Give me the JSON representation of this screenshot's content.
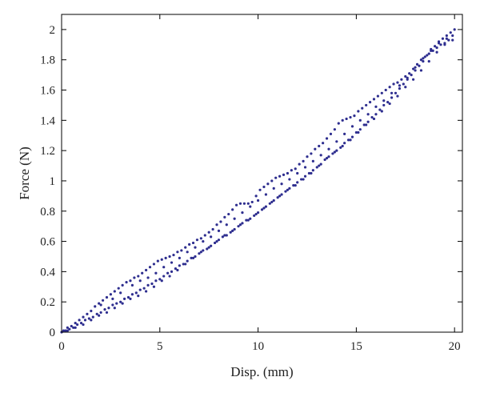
{
  "chart_data": {
    "type": "scatter",
    "xlabel": "Disp. (mm)",
    "ylabel": "Force (N)",
    "xlim": [
      0,
      20.4
    ],
    "ylim": [
      0,
      2.1
    ],
    "xticks": [
      0,
      5,
      10,
      15,
      20
    ],
    "yticks": [
      0,
      0.2,
      0.4,
      0.6,
      0.8,
      1,
      1.2,
      1.4,
      1.6,
      1.8,
      2
    ],
    "xtick_labels": [
      "0",
      "5",
      "10",
      "15",
      "20"
    ],
    "ytick_labels": [
      "0",
      "0.2",
      "0.4",
      "0.6",
      "0.8",
      "1",
      "1.2",
      "1.4",
      "1.6",
      "1.8",
      "2"
    ],
    "marker_color": "#2e2e8f",
    "series": [
      {
        "points": [
          [
            0.0,
            0.0
          ],
          [
            0.2,
            0.01
          ],
          [
            0.4,
            0.02
          ],
          [
            0.6,
            0.03
          ],
          [
            0.8,
            0.05
          ],
          [
            1.0,
            0.06
          ],
          [
            1.2,
            0.08
          ],
          [
            1.4,
            0.09
          ],
          [
            1.6,
            0.1
          ],
          [
            1.8,
            0.12
          ],
          [
            2.0,
            0.13
          ],
          [
            2.2,
            0.15
          ],
          [
            2.4,
            0.16
          ],
          [
            2.6,
            0.18
          ],
          [
            2.8,
            0.19
          ],
          [
            3.0,
            0.2
          ],
          [
            3.2,
            0.22
          ],
          [
            3.4,
            0.23
          ],
          [
            3.6,
            0.25
          ],
          [
            3.8,
            0.26
          ],
          [
            4.0,
            0.28
          ],
          [
            4.2,
            0.29
          ],
          [
            4.4,
            0.31
          ],
          [
            4.6,
            0.32
          ],
          [
            4.8,
            0.34
          ],
          [
            5.0,
            0.35
          ],
          [
            5.2,
            0.37
          ],
          [
            5.4,
            0.39
          ],
          [
            5.6,
            0.4
          ],
          [
            5.8,
            0.42
          ],
          [
            6.0,
            0.44
          ],
          [
            6.2,
            0.45
          ],
          [
            6.4,
            0.47
          ],
          [
            6.6,
            0.49
          ],
          [
            6.8,
            0.5
          ],
          [
            7.0,
            0.52
          ],
          [
            7.2,
            0.54
          ],
          [
            7.4,
            0.55
          ],
          [
            7.6,
            0.57
          ],
          [
            7.8,
            0.59
          ],
          [
            8.0,
            0.61
          ],
          [
            8.2,
            0.63
          ],
          [
            8.4,
            0.64
          ],
          [
            8.6,
            0.66
          ],
          [
            8.8,
            0.68
          ],
          [
            9.0,
            0.7
          ],
          [
            9.2,
            0.72
          ],
          [
            9.4,
            0.74
          ],
          [
            9.6,
            0.75
          ],
          [
            9.8,
            0.77
          ],
          [
            10.0,
            0.79
          ],
          [
            10.2,
            0.81
          ],
          [
            10.4,
            0.83
          ],
          [
            10.6,
            0.85
          ],
          [
            10.8,
            0.87
          ],
          [
            11.0,
            0.89
          ],
          [
            11.2,
            0.91
          ],
          [
            11.4,
            0.93
          ],
          [
            11.6,
            0.95
          ],
          [
            11.8,
            0.97
          ],
          [
            12.0,
            0.99
          ],
          [
            12.2,
            1.01
          ],
          [
            12.4,
            1.03
          ],
          [
            12.6,
            1.05
          ],
          [
            12.8,
            1.07
          ],
          [
            13.0,
            1.09
          ],
          [
            13.2,
            1.11
          ],
          [
            13.4,
            1.14
          ],
          [
            13.6,
            1.16
          ],
          [
            13.8,
            1.18
          ],
          [
            14.0,
            1.2
          ],
          [
            14.2,
            1.22
          ],
          [
            14.4,
            1.25
          ],
          [
            14.6,
            1.27
          ],
          [
            14.8,
            1.29
          ],
          [
            15.0,
            1.32
          ],
          [
            15.2,
            1.34
          ],
          [
            15.4,
            1.37
          ],
          [
            15.6,
            1.39
          ],
          [
            15.8,
            1.42
          ],
          [
            16.0,
            1.44
          ],
          [
            16.2,
            1.47
          ],
          [
            16.4,
            1.5
          ],
          [
            16.6,
            1.52
          ],
          [
            16.8,
            1.55
          ],
          [
            17.0,
            1.58
          ],
          [
            17.2,
            1.61
          ],
          [
            17.4,
            1.64
          ],
          [
            17.6,
            1.67
          ],
          [
            17.8,
            1.7
          ],
          [
            18.0,
            1.73
          ],
          [
            18.2,
            1.76
          ],
          [
            18.4,
            1.79
          ],
          [
            18.6,
            1.83
          ],
          [
            18.8,
            1.86
          ],
          [
            19.0,
            1.89
          ],
          [
            19.2,
            1.92
          ],
          [
            19.4,
            1.94
          ],
          [
            19.6,
            1.96
          ],
          [
            19.8,
            1.98
          ],
          [
            20.0,
            2.0
          ],
          [
            19.9,
            1.96
          ],
          [
            19.7,
            1.93
          ],
          [
            19.5,
            1.91
          ],
          [
            19.3,
            1.9
          ],
          [
            19.1,
            1.88
          ],
          [
            18.9,
            1.86
          ],
          [
            18.7,
            1.84
          ],
          [
            18.5,
            1.82
          ],
          [
            18.3,
            1.8
          ],
          [
            18.1,
            1.77
          ],
          [
            17.9,
            1.74
          ],
          [
            17.7,
            1.71
          ],
          [
            17.5,
            1.69
          ],
          [
            17.3,
            1.67
          ],
          [
            17.1,
            1.65
          ],
          [
            16.9,
            1.64
          ],
          [
            16.7,
            1.62
          ],
          [
            16.5,
            1.6
          ],
          [
            16.3,
            1.58
          ],
          [
            16.1,
            1.56
          ],
          [
            15.9,
            1.54
          ],
          [
            15.7,
            1.52
          ],
          [
            15.5,
            1.5
          ],
          [
            15.3,
            1.48
          ],
          [
            15.1,
            1.46
          ],
          [
            14.9,
            1.43
          ],
          [
            14.7,
            1.42
          ],
          [
            14.5,
            1.41
          ],
          [
            14.3,
            1.4
          ],
          [
            14.1,
            1.38
          ],
          [
            13.9,
            1.34
          ],
          [
            13.7,
            1.31
          ],
          [
            13.5,
            1.28
          ],
          [
            13.3,
            1.25
          ],
          [
            13.1,
            1.23
          ],
          [
            12.9,
            1.21
          ],
          [
            12.7,
            1.18
          ],
          [
            12.5,
            1.16
          ],
          [
            12.3,
            1.13
          ],
          [
            12.1,
            1.11
          ],
          [
            11.9,
            1.08
          ],
          [
            11.7,
            1.07
          ],
          [
            11.5,
            1.05
          ],
          [
            11.3,
            1.04
          ],
          [
            11.1,
            1.03
          ],
          [
            10.9,
            1.02
          ],
          [
            10.7,
            1.0
          ],
          [
            10.5,
            0.98
          ],
          [
            10.3,
            0.96
          ],
          [
            10.1,
            0.94
          ],
          [
            9.9,
            0.9
          ],
          [
            9.7,
            0.86
          ],
          [
            9.5,
            0.85
          ],
          [
            9.3,
            0.85
          ],
          [
            9.1,
            0.85
          ],
          [
            8.9,
            0.84
          ],
          [
            8.7,
            0.81
          ],
          [
            8.5,
            0.78
          ],
          [
            8.3,
            0.76
          ],
          [
            8.1,
            0.73
          ],
          [
            7.9,
            0.71
          ],
          [
            7.7,
            0.68
          ],
          [
            7.5,
            0.66
          ],
          [
            7.3,
            0.64
          ],
          [
            7.1,
            0.62
          ],
          [
            6.9,
            0.61
          ],
          [
            6.7,
            0.59
          ],
          [
            6.5,
            0.58
          ],
          [
            6.3,
            0.56
          ],
          [
            6.1,
            0.54
          ],
          [
            5.9,
            0.53
          ],
          [
            5.7,
            0.51
          ],
          [
            5.5,
            0.5
          ],
          [
            5.3,
            0.49
          ],
          [
            5.1,
            0.48
          ],
          [
            4.9,
            0.47
          ],
          [
            4.7,
            0.45
          ],
          [
            4.5,
            0.43
          ],
          [
            4.3,
            0.41
          ],
          [
            4.1,
            0.39
          ],
          [
            3.9,
            0.37
          ],
          [
            3.7,
            0.36
          ],
          [
            3.5,
            0.34
          ],
          [
            3.3,
            0.33
          ],
          [
            3.1,
            0.31
          ],
          [
            2.9,
            0.29
          ],
          [
            2.7,
            0.27
          ],
          [
            2.5,
            0.25
          ],
          [
            2.3,
            0.23
          ],
          [
            2.1,
            0.21
          ],
          [
            1.9,
            0.19
          ],
          [
            1.7,
            0.17
          ],
          [
            1.5,
            0.14
          ],
          [
            1.3,
            0.12
          ],
          [
            1.1,
            0.1
          ],
          [
            0.9,
            0.08
          ],
          [
            0.7,
            0.06
          ],
          [
            0.5,
            0.04
          ],
          [
            0.3,
            0.03
          ],
          [
            0.1,
            0.01
          ],
          [
            0.3,
            0.01
          ],
          [
            0.7,
            0.03
          ],
          [
            1.1,
            0.05
          ],
          [
            1.5,
            0.08
          ],
          [
            1.9,
            0.11
          ],
          [
            2.3,
            0.13
          ],
          [
            2.7,
            0.16
          ],
          [
            3.1,
            0.19
          ],
          [
            3.5,
            0.22
          ],
          [
            3.9,
            0.24
          ],
          [
            4.3,
            0.27
          ],
          [
            4.7,
            0.3
          ],
          [
            5.1,
            0.34
          ],
          [
            5.5,
            0.37
          ],
          [
            5.9,
            0.41
          ],
          [
            6.3,
            0.45
          ],
          [
            6.7,
            0.49
          ],
          [
            7.1,
            0.53
          ],
          [
            7.5,
            0.56
          ],
          [
            7.9,
            0.6
          ],
          [
            8.3,
            0.64
          ],
          [
            8.7,
            0.67
          ],
          [
            9.1,
            0.71
          ],
          [
            9.5,
            0.74
          ],
          [
            9.9,
            0.78
          ],
          [
            10.3,
            0.82
          ],
          [
            10.7,
            0.86
          ],
          [
            11.1,
            0.9
          ],
          [
            11.5,
            0.94
          ],
          [
            11.9,
            0.97
          ],
          [
            12.3,
            1.01
          ],
          [
            12.7,
            1.05
          ],
          [
            13.1,
            1.1
          ],
          [
            13.5,
            1.15
          ],
          [
            13.9,
            1.19
          ],
          [
            14.3,
            1.23
          ],
          [
            14.7,
            1.27
          ],
          [
            15.1,
            1.32
          ],
          [
            15.5,
            1.37
          ],
          [
            15.9,
            1.41
          ],
          [
            16.3,
            1.46
          ],
          [
            16.7,
            1.51
          ],
          [
            17.1,
            1.56
          ],
          [
            17.5,
            1.62
          ],
          [
            17.9,
            1.67
          ],
          [
            18.3,
            1.73
          ],
          [
            18.7,
            1.79
          ],
          [
            19.1,
            1.85
          ],
          [
            19.5,
            1.9
          ],
          [
            19.9,
            1.93
          ],
          [
            2.0,
            0.18
          ],
          [
            2.6,
            0.22
          ],
          [
            3.0,
            0.26
          ],
          [
            3.6,
            0.31
          ],
          [
            4.0,
            0.34
          ],
          [
            4.4,
            0.36
          ],
          [
            4.8,
            0.39
          ],
          [
            5.2,
            0.43
          ],
          [
            5.6,
            0.46
          ],
          [
            6.0,
            0.49
          ],
          [
            6.4,
            0.53
          ],
          [
            6.8,
            0.56
          ],
          [
            7.2,
            0.6
          ],
          [
            7.6,
            0.63
          ],
          [
            8.0,
            0.67
          ],
          [
            8.4,
            0.71
          ],
          [
            8.8,
            0.75
          ],
          [
            9.2,
            0.79
          ],
          [
            9.6,
            0.83
          ],
          [
            10.0,
            0.87
          ],
          [
            10.4,
            0.91
          ],
          [
            10.8,
            0.95
          ],
          [
            11.2,
            0.98
          ],
          [
            11.6,
            1.01
          ],
          [
            12.0,
            1.05
          ],
          [
            12.4,
            1.09
          ],
          [
            12.8,
            1.13
          ],
          [
            13.2,
            1.17
          ],
          [
            13.6,
            1.21
          ],
          [
            14.0,
            1.26
          ],
          [
            14.4,
            1.31
          ],
          [
            14.8,
            1.36
          ],
          [
            15.2,
            1.4
          ],
          [
            15.6,
            1.44
          ],
          [
            16.0,
            1.49
          ],
          [
            16.4,
            1.53
          ],
          [
            16.8,
            1.58
          ],
          [
            17.2,
            1.63
          ],
          [
            17.6,
            1.68
          ],
          [
            18.0,
            1.75
          ],
          [
            18.4,
            1.81
          ],
          [
            18.8,
            1.87
          ],
          [
            19.2,
            1.91
          ],
          [
            19.6,
            1.94
          ]
        ]
      }
    ]
  }
}
